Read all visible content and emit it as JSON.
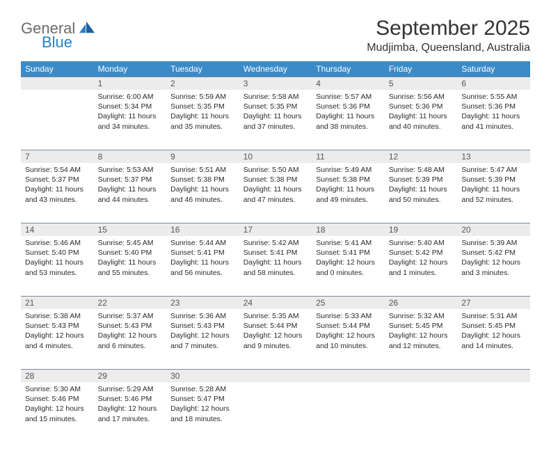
{
  "brand": {
    "word1": "General",
    "word2": "Blue"
  },
  "title": "September 2025",
  "location": "Mudjimba, Queensland, Australia",
  "colors": {
    "header_bg": "#3b8bc8",
    "header_text": "#ffffff",
    "daynum_bg": "#ececec",
    "daynum_border": "#7a8a9a",
    "text": "#2a2a2a",
    "brand_gray": "#6b6b6b",
    "brand_blue": "#2c7fbf"
  },
  "fonts": {
    "title_size": 30,
    "location_size": 16,
    "th_size": 12,
    "cell_size": 10.5
  },
  "day_headers": [
    "Sunday",
    "Monday",
    "Tuesday",
    "Wednesday",
    "Thursday",
    "Friday",
    "Saturday"
  ],
  "weeks": [
    [
      null,
      {
        "n": "1",
        "sunrise": "6:00 AM",
        "sunset": "5:34 PM",
        "day_h": "11",
        "day_m": "34"
      },
      {
        "n": "2",
        "sunrise": "5:59 AM",
        "sunset": "5:35 PM",
        "day_h": "11",
        "day_m": "35"
      },
      {
        "n": "3",
        "sunrise": "5:58 AM",
        "sunset": "5:35 PM",
        "day_h": "11",
        "day_m": "37"
      },
      {
        "n": "4",
        "sunrise": "5:57 AM",
        "sunset": "5:36 PM",
        "day_h": "11",
        "day_m": "38"
      },
      {
        "n": "5",
        "sunrise": "5:56 AM",
        "sunset": "5:36 PM",
        "day_h": "11",
        "day_m": "40"
      },
      {
        "n": "6",
        "sunrise": "5:55 AM",
        "sunset": "5:36 PM",
        "day_h": "11",
        "day_m": "41"
      }
    ],
    [
      {
        "n": "7",
        "sunrise": "5:54 AM",
        "sunset": "5:37 PM",
        "day_h": "11",
        "day_m": "43"
      },
      {
        "n": "8",
        "sunrise": "5:53 AM",
        "sunset": "5:37 PM",
        "day_h": "11",
        "day_m": "44"
      },
      {
        "n": "9",
        "sunrise": "5:51 AM",
        "sunset": "5:38 PM",
        "day_h": "11",
        "day_m": "46"
      },
      {
        "n": "10",
        "sunrise": "5:50 AM",
        "sunset": "5:38 PM",
        "day_h": "11",
        "day_m": "47"
      },
      {
        "n": "11",
        "sunrise": "5:49 AM",
        "sunset": "5:38 PM",
        "day_h": "11",
        "day_m": "49"
      },
      {
        "n": "12",
        "sunrise": "5:48 AM",
        "sunset": "5:39 PM",
        "day_h": "11",
        "day_m": "50"
      },
      {
        "n": "13",
        "sunrise": "5:47 AM",
        "sunset": "5:39 PM",
        "day_h": "11",
        "day_m": "52"
      }
    ],
    [
      {
        "n": "14",
        "sunrise": "5:46 AM",
        "sunset": "5:40 PM",
        "day_h": "11",
        "day_m": "53"
      },
      {
        "n": "15",
        "sunrise": "5:45 AM",
        "sunset": "5:40 PM",
        "day_h": "11",
        "day_m": "55"
      },
      {
        "n": "16",
        "sunrise": "5:44 AM",
        "sunset": "5:41 PM",
        "day_h": "11",
        "day_m": "56"
      },
      {
        "n": "17",
        "sunrise": "5:42 AM",
        "sunset": "5:41 PM",
        "day_h": "11",
        "day_m": "58"
      },
      {
        "n": "18",
        "sunrise": "5:41 AM",
        "sunset": "5:41 PM",
        "day_h": "12",
        "day_m": "0"
      },
      {
        "n": "19",
        "sunrise": "5:40 AM",
        "sunset": "5:42 PM",
        "day_h": "12",
        "day_m": "1"
      },
      {
        "n": "20",
        "sunrise": "5:39 AM",
        "sunset": "5:42 PM",
        "day_h": "12",
        "day_m": "3"
      }
    ],
    [
      {
        "n": "21",
        "sunrise": "5:38 AM",
        "sunset": "5:43 PM",
        "day_h": "12",
        "day_m": "4"
      },
      {
        "n": "22",
        "sunrise": "5:37 AM",
        "sunset": "5:43 PM",
        "day_h": "12",
        "day_m": "6"
      },
      {
        "n": "23",
        "sunrise": "5:36 AM",
        "sunset": "5:43 PM",
        "day_h": "12",
        "day_m": "7"
      },
      {
        "n": "24",
        "sunrise": "5:35 AM",
        "sunset": "5:44 PM",
        "day_h": "12",
        "day_m": "9"
      },
      {
        "n": "25",
        "sunrise": "5:33 AM",
        "sunset": "5:44 PM",
        "day_h": "12",
        "day_m": "10"
      },
      {
        "n": "26",
        "sunrise": "5:32 AM",
        "sunset": "5:45 PM",
        "day_h": "12",
        "day_m": "12"
      },
      {
        "n": "27",
        "sunrise": "5:31 AM",
        "sunset": "5:45 PM",
        "day_h": "12",
        "day_m": "14"
      }
    ],
    [
      {
        "n": "28",
        "sunrise": "5:30 AM",
        "sunset": "5:46 PM",
        "day_h": "12",
        "day_m": "15"
      },
      {
        "n": "29",
        "sunrise": "5:29 AM",
        "sunset": "5:46 PM",
        "day_h": "12",
        "day_m": "17"
      },
      {
        "n": "30",
        "sunrise": "5:28 AM",
        "sunset": "5:47 PM",
        "day_h": "12",
        "day_m": "18"
      },
      null,
      null,
      null,
      null
    ]
  ],
  "labels": {
    "sunrise": "Sunrise:",
    "sunset": "Sunset:",
    "daylight": "Daylight:",
    "hours": "hours",
    "and": "and",
    "minutes": "minutes."
  }
}
